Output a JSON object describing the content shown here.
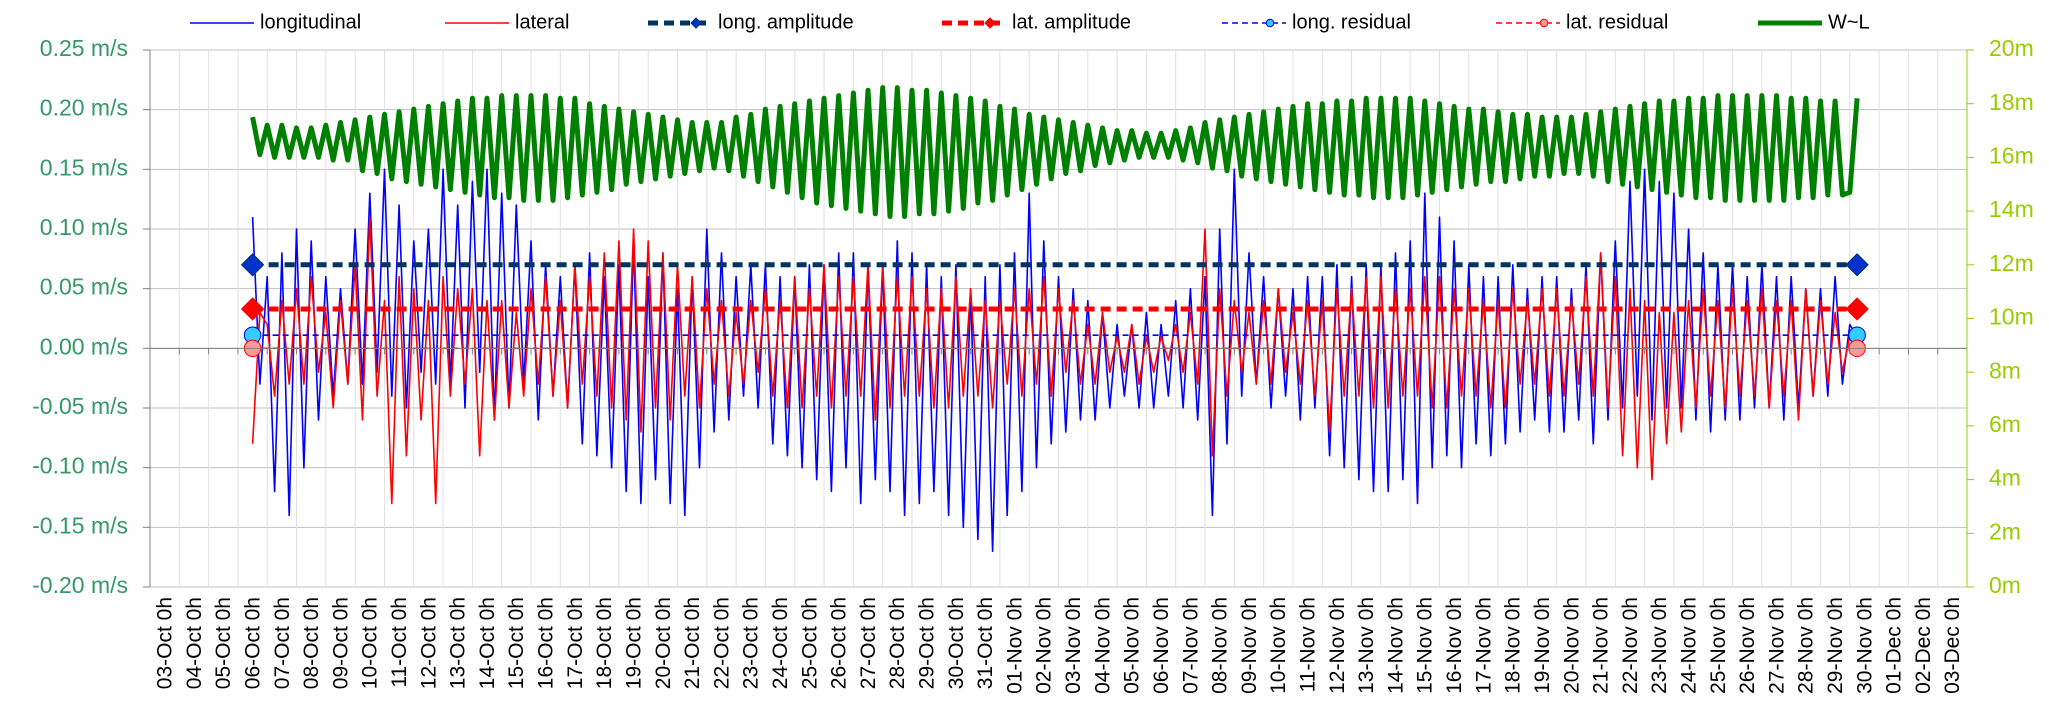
{
  "chart_data": {
    "type": "line",
    "categories": [
      "03-Oct 0h",
      "04-Oct 0h",
      "05-Oct 0h",
      "06-Oct 0h",
      "07-Oct 0h",
      "08-Oct 0h",
      "09-Oct 0h",
      "10-Oct 0h",
      "11-Oct 0h",
      "12-Oct 0h",
      "13-Oct 0h",
      "14-Oct 0h",
      "15-Oct 0h",
      "16-Oct 0h",
      "17-Oct 0h",
      "18-Oct 0h",
      "19-Oct 0h",
      "20-Oct 0h",
      "21-Oct 0h",
      "22-Oct 0h",
      "23-Oct 0h",
      "24-Oct 0h",
      "25-Oct 0h",
      "26-Oct 0h",
      "27-Oct 0h",
      "28-Oct 0h",
      "29-Oct 0h",
      "30-Oct 0h",
      "31-Oct 0h",
      "01-Nov 0h",
      "02-Nov 0h",
      "03-Nov 0h",
      "04-Nov 0h",
      "05-Nov 0h",
      "06-Nov 0h",
      "07-Nov 0h",
      "08-Nov 0h",
      "09-Nov 0h",
      "10-Nov 0h",
      "11-Nov 0h",
      "12-Nov 0h",
      "13-Nov 0h",
      "14-Nov 0h",
      "15-Nov 0h",
      "16-Nov 0h",
      "17-Nov 0h",
      "18-Nov 0h",
      "19-Nov 0h",
      "20-Nov 0h",
      "21-Nov 0h",
      "22-Nov 0h",
      "23-Nov 0h",
      "24-Nov 0h",
      "25-Nov 0h",
      "26-Nov 0h",
      "27-Nov 0h",
      "28-Nov 0h",
      "29-Nov 0h",
      "30-Nov 0h",
      "01-Dec 0h",
      "02-Dec 0h",
      "03-Dec 0h"
    ],
    "x": [
      "06-Oct 12h",
      "06-Oct 18h",
      "07-Oct 0h",
      "07-Oct 6h",
      "07-Oct 12h",
      "07-Oct 18h",
      "08-Oct 0h",
      "08-Oct 6h",
      "08-Oct 12h",
      "08-Oct 18h",
      "09-Oct 0h",
      "09-Oct 6h",
      "09-Oct 12h",
      "09-Oct 18h",
      "10-Oct 0h",
      "10-Oct 6h",
      "10-Oct 12h",
      "10-Oct 18h",
      "11-Oct 0h",
      "11-Oct 6h",
      "11-Oct 12h",
      "11-Oct 18h",
      "12-Oct 0h",
      "12-Oct 6h",
      "12-Oct 12h",
      "12-Oct 18h",
      "13-Oct 0h",
      "13-Oct 6h",
      "13-Oct 12h",
      "13-Oct 18h",
      "14-Oct 0h",
      "14-Oct 6h",
      "14-Oct 12h",
      "14-Oct 18h",
      "15-Oct 0h",
      "15-Oct 6h",
      "15-Oct 12h",
      "15-Oct 18h",
      "16-Oct 0h",
      "16-Oct 6h",
      "16-Oct 12h",
      "16-Oct 18h",
      "17-Oct 0h",
      "17-Oct 6h",
      "17-Oct 12h",
      "17-Oct 18h",
      "18-Oct 0h",
      "18-Oct 6h",
      "18-Oct 12h",
      "18-Oct 18h",
      "19-Oct 0h",
      "19-Oct 6h",
      "19-Oct 12h",
      "19-Oct 18h",
      "20-Oct 0h",
      "20-Oct 6h",
      "20-Oct 12h",
      "20-Oct 18h",
      "21-Oct 0h",
      "21-Oct 6h",
      "21-Oct 12h",
      "21-Oct 18h",
      "22-Oct 0h",
      "22-Oct 6h",
      "22-Oct 12h",
      "22-Oct 18h",
      "23-Oct 0h",
      "23-Oct 6h",
      "23-Oct 12h",
      "23-Oct 18h",
      "24-Oct 0h",
      "24-Oct 6h",
      "24-Oct 12h",
      "24-Oct 18h",
      "25-Oct 0h",
      "25-Oct 6h",
      "25-Oct 12h",
      "25-Oct 18h",
      "26-Oct 0h",
      "26-Oct 6h",
      "26-Oct 12h",
      "26-Oct 18h",
      "27-Oct 0h",
      "27-Oct 6h",
      "27-Oct 12h",
      "27-Oct 18h",
      "28-Oct 0h",
      "28-Oct 6h",
      "28-Oct 12h",
      "28-Oct 18h",
      "29-Oct 0h",
      "29-Oct 6h",
      "29-Oct 12h",
      "29-Oct 18h",
      "30-Oct 0h",
      "30-Oct 6h",
      "30-Oct 12h",
      "30-Oct 18h",
      "31-Oct 0h",
      "31-Oct 6h",
      "31-Oct 12h",
      "31-Oct 18h",
      "01-Nov 0h",
      "01-Nov 6h",
      "01-Nov 12h",
      "01-Nov 18h",
      "02-Nov 0h",
      "02-Nov 6h",
      "02-Nov 12h",
      "02-Nov 18h",
      "03-Nov 0h",
      "03-Nov 6h",
      "03-Nov 12h",
      "03-Nov 18h",
      "04-Nov 0h",
      "04-Nov 6h",
      "04-Nov 12h",
      "04-Nov 18h",
      "05-Nov 0h",
      "05-Nov 6h",
      "05-Nov 12h",
      "05-Nov 18h",
      "06-Nov 0h",
      "06-Nov 6h",
      "06-Nov 12h",
      "06-Nov 18h",
      "07-Nov 0h",
      "07-Nov 6h",
      "07-Nov 12h",
      "07-Nov 18h",
      "08-Nov 0h",
      "08-Nov 6h",
      "08-Nov 12h",
      "08-Nov 18h",
      "09-Nov 0h",
      "09-Nov 6h",
      "09-Nov 12h",
      "09-Nov 18h",
      "10-Nov 0h",
      "10-Nov 6h",
      "10-Nov 12h",
      "10-Nov 18h",
      "11-Nov 0h",
      "11-Nov 6h",
      "11-Nov 12h",
      "11-Nov 18h",
      "12-Nov 0h",
      "12-Nov 6h",
      "12-Nov 12h",
      "12-Nov 18h",
      "13-Nov 0h",
      "13-Nov 6h",
      "13-Nov 12h",
      "13-Nov 18h",
      "14-Nov 0h",
      "14-Nov 6h",
      "14-Nov 12h",
      "14-Nov 18h",
      "15-Nov 0h",
      "15-Nov 6h",
      "15-Nov 12h",
      "15-Nov 18h",
      "16-Nov 0h",
      "16-Nov 6h",
      "16-Nov 12h",
      "16-Nov 18h",
      "17-Nov 0h",
      "17-Nov 6h",
      "17-Nov 12h",
      "17-Nov 18h",
      "18-Nov 0h",
      "18-Nov 6h",
      "18-Nov 12h",
      "18-Nov 18h",
      "19-Nov 0h",
      "19-Nov 6h",
      "19-Nov 12h",
      "19-Nov 18h",
      "20-Nov 0h",
      "20-Nov 6h",
      "20-Nov 12h",
      "20-Nov 18h",
      "21-Nov 0h",
      "21-Nov 6h",
      "21-Nov 12h",
      "21-Nov 18h",
      "22-Nov 0h",
      "22-Nov 6h",
      "22-Nov 12h",
      "22-Nov 18h",
      "23-Nov 0h",
      "23-Nov 6h",
      "23-Nov 12h",
      "23-Nov 18h",
      "24-Nov 0h",
      "24-Nov 6h",
      "24-Nov 12h",
      "24-Nov 18h",
      "25-Nov 0h",
      "25-Nov 6h",
      "25-Nov 12h",
      "25-Nov 18h",
      "26-Nov 0h",
      "26-Nov 6h",
      "26-Nov 12h",
      "26-Nov 18h",
      "27-Nov 0h",
      "27-Nov 6h",
      "27-Nov 12h",
      "27-Nov 18h",
      "28-Nov 0h",
      "28-Nov 6h",
      "28-Nov 12h",
      "28-Nov 18h",
      "29-Nov 0h",
      "29-Nov 6h",
      "29-Nov 12h",
      "29-Nov 18h",
      "30-Nov 0h",
      "30-Nov 6h"
    ],
    "series": [
      {
        "name": "longitudinal",
        "color": "#0000ff",
        "linestyle": "solid",
        "weight": "thin",
        "values": [
          0.11,
          -0.03,
          0.06,
          -0.12,
          0.08,
          -0.14,
          0.1,
          -0.1,
          0.09,
          -0.06,
          0.06,
          -0.04,
          0.05,
          -0.03,
          0.1,
          -0.03,
          0.13,
          -0.02,
          0.15,
          -0.04,
          0.12,
          -0.05,
          0.09,
          -0.02,
          0.1,
          -0.03,
          0.15,
          -0.03,
          0.12,
          -0.05,
          0.14,
          -0.02,
          0.15,
          -0.06,
          0.13,
          -0.05,
          0.12,
          -0.03,
          0.09,
          -0.06,
          0.07,
          -0.04,
          0.06,
          -0.05,
          0.07,
          -0.08,
          0.08,
          -0.09,
          0.06,
          -0.1,
          0.07,
          -0.12,
          0.09,
          -0.13,
          0.06,
          -0.11,
          0.08,
          -0.13,
          0.05,
          -0.14,
          0.06,
          -0.1,
          0.1,
          -0.07,
          0.08,
          -0.06,
          0.06,
          -0.04,
          0.07,
          -0.05,
          0.07,
          -0.08,
          0.06,
          -0.09,
          0.06,
          -0.1,
          0.07,
          -0.11,
          0.07,
          -0.12,
          0.08,
          -0.1,
          0.08,
          -0.13,
          0.07,
          -0.11,
          0.07,
          -0.12,
          0.09,
          -0.14,
          0.08,
          -0.13,
          0.07,
          -0.12,
          0.06,
          -0.14,
          0.07,
          -0.15,
          0.05,
          -0.16,
          0.06,
          -0.17,
          0.07,
          -0.14,
          0.08,
          -0.12,
          0.13,
          -0.1,
          0.09,
          -0.08,
          0.06,
          -0.07,
          0.05,
          -0.06,
          0.04,
          -0.06,
          0.03,
          -0.05,
          0.02,
          -0.04,
          0.02,
          -0.05,
          0.03,
          -0.05,
          0.02,
          -0.04,
          0.04,
          -0.05,
          0.05,
          -0.06,
          0.06,
          -0.14,
          0.1,
          -0.08,
          0.15,
          -0.04,
          0.08,
          -0.03,
          0.06,
          -0.05,
          0.05,
          -0.04,
          0.05,
          -0.06,
          0.06,
          -0.05,
          0.06,
          -0.09,
          0.07,
          -0.1,
          0.06,
          -0.11,
          0.07,
          -0.12,
          0.07,
          -0.12,
          0.08,
          -0.11,
          0.09,
          -0.13,
          0.13,
          -0.1,
          0.11,
          -0.09,
          0.09,
          -0.1,
          0.07,
          -0.08,
          0.06,
          -0.09,
          0.06,
          -0.08,
          0.07,
          -0.07,
          0.05,
          -0.06,
          0.06,
          -0.07,
          0.06,
          -0.07,
          0.05,
          -0.06,
          0.07,
          -0.08,
          0.08,
          -0.06,
          0.09,
          -0.05,
          0.14,
          -0.04,
          0.15,
          -0.06,
          0.14,
          -0.05,
          0.13,
          -0.05,
          0.1,
          -0.06,
          0.08,
          -0.07,
          0.07,
          -0.06,
          0.07,
          -0.06,
          0.06,
          -0.05,
          0.07,
          -0.05,
          0.06,
          -0.06,
          0.06,
          -0.05,
          0.05,
          -0.04,
          0.05,
          -0.04,
          0.06,
          -0.03,
          0.02,
          0.01
        ]
      },
      {
        "name": "lateral",
        "color": "#ff0000",
        "linestyle": "solid",
        "weight": "thin",
        "values": [
          -0.08,
          0.03,
          0.02,
          -0.04,
          0.04,
          -0.03,
          0.05,
          -0.03,
          0.06,
          -0.02,
          0.03,
          -0.05,
          0.04,
          -0.03,
          0.07,
          -0.06,
          0.11,
          -0.04,
          0.04,
          -0.13,
          0.06,
          -0.09,
          0.05,
          -0.06,
          0.04,
          -0.13,
          0.06,
          -0.04,
          0.05,
          -0.03,
          0.05,
          -0.09,
          0.04,
          -0.06,
          0.04,
          -0.05,
          0.03,
          -0.04,
          0.05,
          -0.03,
          0.06,
          -0.04,
          0.04,
          -0.05,
          0.07,
          -0.03,
          0.06,
          -0.04,
          0.08,
          -0.05,
          0.09,
          -0.06,
          0.1,
          -0.07,
          0.09,
          -0.05,
          0.08,
          -0.06,
          0.07,
          -0.04,
          0.06,
          -0.05,
          0.05,
          -0.03,
          0.04,
          -0.04,
          0.03,
          -0.03,
          0.04,
          -0.02,
          0.05,
          -0.04,
          0.04,
          -0.05,
          0.06,
          -0.05,
          0.05,
          -0.04,
          0.07,
          -0.05,
          0.06,
          -0.04,
          0.06,
          -0.04,
          0.07,
          -0.06,
          0.07,
          -0.05,
          0.06,
          -0.04,
          0.06,
          -0.04,
          0.05,
          -0.05,
          0.05,
          -0.05,
          0.06,
          -0.04,
          0.05,
          -0.04,
          0.04,
          -0.05,
          0.04,
          -0.03,
          0.05,
          -0.04,
          0.05,
          -0.03,
          0.06,
          -0.04,
          0.05,
          -0.02,
          0.04,
          -0.03,
          0.02,
          -0.03,
          0.03,
          -0.02,
          0.01,
          -0.02,
          0.02,
          -0.03,
          0.01,
          -0.02,
          0.01,
          -0.01,
          0.02,
          -0.02,
          0.03,
          -0.03,
          0.1,
          -0.09,
          0.05,
          -0.04,
          0.04,
          -0.02,
          0.03,
          -0.03,
          0.04,
          -0.03,
          0.05,
          -0.02,
          0.03,
          -0.03,
          0.04,
          -0.04,
          0.04,
          -0.07,
          0.05,
          -0.04,
          0.05,
          -0.04,
          0.06,
          -0.05,
          0.06,
          -0.05,
          0.05,
          -0.04,
          0.05,
          -0.04,
          0.06,
          -0.05,
          0.06,
          -0.05,
          0.05,
          -0.04,
          0.05,
          -0.04,
          0.04,
          -0.05,
          0.04,
          -0.05,
          0.05,
          -0.03,
          0.04,
          -0.03,
          0.05,
          -0.04,
          0.05,
          -0.04,
          0.04,
          -0.03,
          0.06,
          -0.04,
          0.08,
          -0.05,
          0.06,
          -0.09,
          0.05,
          -0.1,
          0.04,
          -0.11,
          0.03,
          -0.08,
          0.03,
          -0.07,
          0.04,
          -0.05,
          0.05,
          -0.04,
          0.04,
          -0.05,
          0.05,
          -0.04,
          0.04,
          -0.04,
          0.05,
          -0.05,
          0.04,
          -0.04,
          0.04,
          -0.06,
          0.05,
          -0.04,
          0.04,
          -0.03,
          0.03,
          -0.02,
          0.01,
          0
        ]
      },
      {
        "name": "long. amplitude",
        "color": "#003366",
        "linestyle": "dashed",
        "weight": "bold",
        "marker": "diamond",
        "marker_color": "#0033cc",
        "x": [
          "06-Oct 12h",
          "30-Nov 6h"
        ],
        "values": [
          0.07,
          0.07
        ]
      },
      {
        "name": "lat. amplitude",
        "color": "#ff0000",
        "linestyle": "dashed",
        "weight": "bold",
        "marker": "diamond",
        "marker_color": "#ff0000",
        "x": [
          "06-Oct 12h",
          "30-Nov 6h"
        ],
        "values": [
          0.033,
          0.033
        ]
      },
      {
        "name": "long. residual",
        "color": "#0000ff",
        "linestyle": "dashed",
        "weight": "thin",
        "marker": "circle",
        "marker_color": "#33ccff",
        "x": [
          "06-Oct 12h",
          "30-Nov 6h"
        ],
        "values": [
          0.011,
          0.011
        ]
      },
      {
        "name": "lat. residual",
        "color": "#ff0000",
        "linestyle": "dashed",
        "weight": "thin",
        "marker": "circle",
        "marker_color": "#ff9999",
        "x": [
          "06-Oct 12h",
          "30-Nov 6h"
        ],
        "values": [
          0,
          0
        ]
      },
      {
        "name": "W~L",
        "color": "#008000",
        "linestyle": "solid",
        "weight": "bold",
        "axis": "y2",
        "values": [
          17.5,
          16.1,
          17.2,
          16.0,
          17.2,
          16.0,
          17.1,
          16.0,
          17.1,
          16.0,
          17.2,
          15.9,
          17.3,
          15.9,
          17.4,
          15.5,
          17.5,
          15.4,
          17.6,
          15.2,
          17.7,
          15.1,
          17.8,
          15.0,
          17.9,
          14.9,
          18.0,
          14.8,
          18.1,
          14.7,
          18.2,
          14.6,
          18.2,
          14.5,
          18.3,
          14.5,
          18.3,
          14.4,
          18.3,
          14.4,
          18.3,
          14.4,
          18.2,
          14.5,
          18.2,
          14.6,
          18.0,
          14.7,
          17.9,
          14.8,
          17.8,
          15.0,
          17.7,
          15.1,
          17.6,
          15.2,
          17.5,
          15.3,
          17.4,
          15.4,
          17.3,
          15.5,
          17.3,
          15.6,
          17.3,
          15.5,
          17.5,
          15.3,
          17.6,
          15.1,
          17.8,
          14.9,
          17.9,
          14.7,
          18.0,
          14.5,
          18.1,
          14.3,
          18.2,
          14.2,
          18.3,
          14.1,
          18.4,
          14.0,
          18.5,
          13.9,
          18.6,
          13.8,
          18.6,
          13.8,
          18.5,
          13.9,
          18.5,
          13.9,
          18.4,
          14.0,
          18.3,
          14.1,
          18.2,
          14.3,
          18.1,
          14.4,
          17.9,
          14.6,
          17.8,
          14.8,
          17.6,
          15.0,
          17.5,
          15.2,
          17.4,
          15.4,
          17.3,
          15.5,
          17.2,
          15.7,
          17.1,
          15.8,
          17.0,
          15.9,
          17.0,
          16.0,
          16.9,
          16.0,
          16.9,
          16.0,
          17.0,
          15.9,
          17.1,
          15.8,
          17.3,
          15.6,
          17.4,
          15.5,
          17.5,
          15.3,
          17.6,
          15.2,
          17.7,
          15.1,
          17.8,
          15.0,
          17.9,
          14.9,
          18.0,
          14.8,
          18.0,
          14.7,
          18.1,
          14.6,
          18.1,
          14.6,
          18.2,
          14.5,
          18.2,
          14.5,
          18.2,
          14.5,
          18.2,
          14.6,
          18.1,
          14.7,
          18.0,
          14.8,
          17.9,
          14.9,
          17.8,
          15.0,
          17.8,
          15.1,
          17.7,
          15.1,
          17.6,
          15.2,
          17.6,
          15.3,
          17.5,
          15.3,
          17.5,
          15.4,
          17.5,
          15.4,
          17.6,
          15.3,
          17.7,
          15.1,
          17.8,
          15.0,
          17.9,
          14.9,
          18.0,
          14.8,
          18.1,
          14.7,
          18.1,
          14.6,
          18.2,
          14.5,
          18.2,
          14.5,
          18.3,
          14.4,
          18.3,
          14.4,
          18.3,
          14.4,
          18.3,
          14.4,
          18.3,
          14.4,
          18.2,
          14.5,
          18.2,
          14.5,
          18.1,
          14.6,
          18.1,
          14.6,
          14.7,
          18.2
        ]
      }
    ],
    "ylim": [
      -0.2,
      0.25
    ],
    "yticks": [
      {
        "value": -0.2,
        "label": "-0.20 m/s"
      },
      {
        "value": -0.15,
        "label": "-0.15 m/s"
      },
      {
        "value": -0.1,
        "label": "-0.10 m/s"
      },
      {
        "value": -0.05,
        "label": "-0.05 m/s"
      },
      {
        "value": 0,
        "label": "0.00 m/s"
      },
      {
        "value": 0.05,
        "label": "0.05 m/s"
      },
      {
        "value": 0.1,
        "label": "0.10 m/s"
      },
      {
        "value": 0.15,
        "label": "0.15 m/s"
      },
      {
        "value": 0.2,
        "label": "0.20 m/s"
      },
      {
        "value": 0.25,
        "label": "0.25 m/s"
      }
    ],
    "y2lim": [
      0,
      20
    ],
    "y2ticks": [
      {
        "value": 0,
        "label": "0m"
      },
      {
        "value": 2,
        "label": "2m"
      },
      {
        "value": 4,
        "label": "4m"
      },
      {
        "value": 6,
        "label": "6m"
      },
      {
        "value": 8,
        "label": "8m"
      },
      {
        "value": 10,
        "label": "10m"
      },
      {
        "value": 12,
        "label": "12m"
      },
      {
        "value": 14,
        "label": "14m"
      },
      {
        "value": 16,
        "label": "16m"
      },
      {
        "value": 18,
        "label": "18m"
      },
      {
        "value": 20,
        "label": "20m"
      }
    ],
    "grid": true,
    "legend": "top"
  }
}
